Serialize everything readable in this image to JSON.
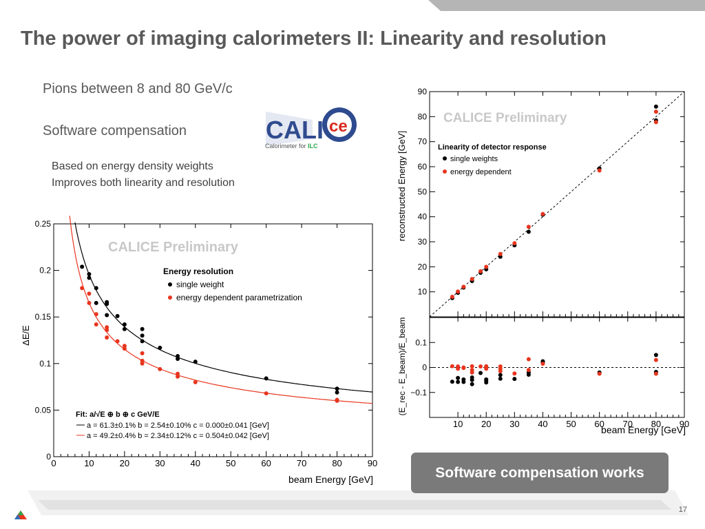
{
  "slide": {
    "title": "The power of imaging calorimeters II: Linearity and resolution",
    "bullets": [
      "Pions between 8 and 80 GeV/c",
      "Software compensation"
    ],
    "subbullets": [
      "Based on energy density weights",
      "Improves both linearity and resolution"
    ],
    "callout": "Software compensation works",
    "page_number": "17",
    "logo": {
      "name": "CALICE",
      "text_cal": "CALI",
      "text_ce": "ce",
      "tagline_prefix": "Calorimeter for ",
      "tagline_ilc": "ILC"
    }
  },
  "colors": {
    "black_series": "#000000",
    "red_series": "#e8351e",
    "logo_blue": "#2f4b8f",
    "logo_red": "#d9281c",
    "callout_bg": "#7a7a7a"
  },
  "chart_data": [
    {
      "type": "scatter",
      "title": "Energy resolution",
      "watermark": "CALICE Preliminary",
      "xlabel": "beam Energy [GeV]",
      "ylabel": "ΔE/E",
      "xlim": [
        0,
        90
      ],
      "ylim": [
        0,
        0.25
      ],
      "xticks": [
        0,
        10,
        20,
        30,
        40,
        50,
        60,
        70,
        80,
        90
      ],
      "yticks": [
        0,
        0.05,
        0.1,
        0.15,
        0.2,
        0.25
      ],
      "ytick_labels": [
        "0",
        "0.05",
        "0.1",
        "0.15",
        "0.2",
        "0.25"
      ],
      "legend_placement": "top-right",
      "fit_title": "Fit: a/√E ⊕ b ⊕ c GeV/E",
      "series": [
        {
          "name": "single weight",
          "color": "#000000",
          "fit_label": "a = 61.3±0.1%  b = 2.54±0.10%  c = 0.000±0.041 [GeV]",
          "fit": {
            "a": 0.613,
            "b": 0.0254,
            "c": 0.0
          },
          "points": [
            [
              8,
              0.204
            ],
            [
              10,
              0.196
            ],
            [
              10,
              0.192
            ],
            [
              12,
              0.181
            ],
            [
              12,
              0.165
            ],
            [
              15,
              0.166
            ],
            [
              15,
              0.164
            ],
            [
              15,
              0.152
            ],
            [
              18,
              0.151
            ],
            [
              20,
              0.142
            ],
            [
              20,
              0.137
            ],
            [
              25,
              0.137
            ],
            [
              25,
              0.13
            ],
            [
              25,
              0.124
            ],
            [
              30,
              0.117
            ],
            [
              35,
              0.108
            ],
            [
              35,
              0.105
            ],
            [
              40,
              0.102
            ],
            [
              60,
              0.084
            ],
            [
              80,
              0.073
            ],
            [
              80,
              0.069
            ]
          ]
        },
        {
          "name": "energy dependent parametrization",
          "color": "#e8351e",
          "fit_label": "a = 49.2±0.4%  b = 2.34±0.12%  c = 0.504±0.042 [GeV]",
          "fit": {
            "a": 0.492,
            "b": 0.0234,
            "c": 0.504
          },
          "points": [
            [
              8,
              0.181
            ],
            [
              10,
              0.175
            ],
            [
              10,
              0.165
            ],
            [
              12,
              0.153
            ],
            [
              12,
              0.142
            ],
            [
              15,
              0.139
            ],
            [
              15,
              0.136
            ],
            [
              15,
              0.128
            ],
            [
              18,
              0.124
            ],
            [
              20,
              0.119
            ],
            [
              20,
              0.116
            ],
            [
              25,
              0.111
            ],
            [
              25,
              0.103
            ],
            [
              25,
              0.1
            ],
            [
              30,
              0.094
            ],
            [
              35,
              0.089
            ],
            [
              35,
              0.086
            ],
            [
              40,
              0.08
            ],
            [
              60,
              0.068
            ],
            [
              80,
              0.061
            ],
            [
              80,
              0.06
            ]
          ]
        }
      ]
    },
    {
      "type": "scatter",
      "title": "Linearity of detector response",
      "watermark": "CALICE Preliminary",
      "xlabel": "",
      "ylabel": "reconstructed Energy [GeV]",
      "xlim": [
        0,
        90
      ],
      "ylim": [
        0,
        90
      ],
      "xticks": [
        10,
        20,
        30,
        40,
        50,
        60,
        70,
        80,
        90
      ],
      "yticks": [
        10,
        20,
        30,
        40,
        50,
        60,
        70,
        80,
        90
      ],
      "legend_placement": "top-left",
      "reference_line": "y = x (dashed)",
      "series": [
        {
          "name": "single weights",
          "color": "#000000",
          "points": [
            [
              8,
              7.5
            ],
            [
              10,
              9.6
            ],
            [
              12,
              11.7
            ],
            [
              15,
              14.3
            ],
            [
              18,
              17.6
            ],
            [
              20,
              19.0
            ],
            [
              25,
              24.0
            ],
            [
              30,
              28.6
            ],
            [
              35,
              34.0
            ],
            [
              40,
              40.8
            ],
            [
              60,
              59.3
            ],
            [
              80,
              78.5
            ],
            [
              80,
              84.0
            ]
          ]
        },
        {
          "name": "energy dependent",
          "color": "#e8351e",
          "points": [
            [
              8,
              8.0
            ],
            [
              10,
              10.1
            ],
            [
              12,
              12.0
            ],
            [
              15,
              15.1
            ],
            [
              18,
              18.2
            ],
            [
              20,
              20.0
            ],
            [
              25,
              25.1
            ],
            [
              30,
              29.4
            ],
            [
              35,
              36.0
            ],
            [
              40,
              41.1
            ],
            [
              60,
              58.5
            ],
            [
              80,
              77.8
            ],
            [
              80,
              82.0
            ]
          ]
        }
      ]
    },
    {
      "type": "scatter",
      "title": "",
      "xlabel": "beam Energy [GeV]",
      "ylabel": "(E_rec - E_beam)/E_beam",
      "xlim": [
        0,
        90
      ],
      "ylim": [
        -0.2,
        0.2
      ],
      "xticks": [
        10,
        20,
        30,
        40,
        50,
        60,
        70,
        80,
        90
      ],
      "yticks": [
        -0.1,
        0,
        0.1
      ],
      "ytick_labels": [
        "−0.1",
        "0",
        "0.1"
      ],
      "reference_line": "y = 0 (dashed)",
      "series": [
        {
          "name": "single weights",
          "color": "#000000",
          "points": [
            [
              8,
              -0.057
            ],
            [
              10,
              -0.042
            ],
            [
              10,
              -0.058
            ],
            [
              12,
              -0.058
            ],
            [
              12,
              -0.048
            ],
            [
              15,
              -0.067
            ],
            [
              15,
              -0.05
            ],
            [
              15,
              -0.04
            ],
            [
              18,
              -0.022
            ],
            [
              20,
              -0.053
            ],
            [
              20,
              -0.048
            ],
            [
              20,
              -0.06
            ],
            [
              25,
              -0.03
            ],
            [
              25,
              -0.045
            ],
            [
              30,
              -0.046
            ],
            [
              35,
              -0.029
            ],
            [
              35,
              -0.02
            ],
            [
              40,
              0.02
            ],
            [
              40,
              0.025
            ],
            [
              60,
              -0.02
            ],
            [
              80,
              0.05
            ],
            [
              80,
              -0.018
            ]
          ]
        },
        {
          "name": "energy dependent",
          "color": "#e8351e",
          "points": [
            [
              8,
              0.005
            ],
            [
              10,
              0.004
            ],
            [
              10,
              -0.005
            ],
            [
              12,
              -0.002
            ],
            [
              12,
              0.0
            ],
            [
              15,
              0.005
            ],
            [
              15,
              -0.01
            ],
            [
              15,
              -0.02
            ],
            [
              18,
              0.004
            ],
            [
              20,
              0.005
            ],
            [
              20,
              -0.005
            ],
            [
              20,
              0.0
            ],
            [
              25,
              0.004
            ],
            [
              25,
              -0.005
            ],
            [
              25,
              -0.015
            ],
            [
              30,
              -0.024
            ],
            [
              35,
              0.033
            ],
            [
              35,
              -0.01
            ],
            [
              40,
              0.015
            ],
            [
              60,
              -0.025
            ],
            [
              80,
              0.03
            ],
            [
              80,
              -0.025
            ]
          ]
        }
      ]
    }
  ]
}
